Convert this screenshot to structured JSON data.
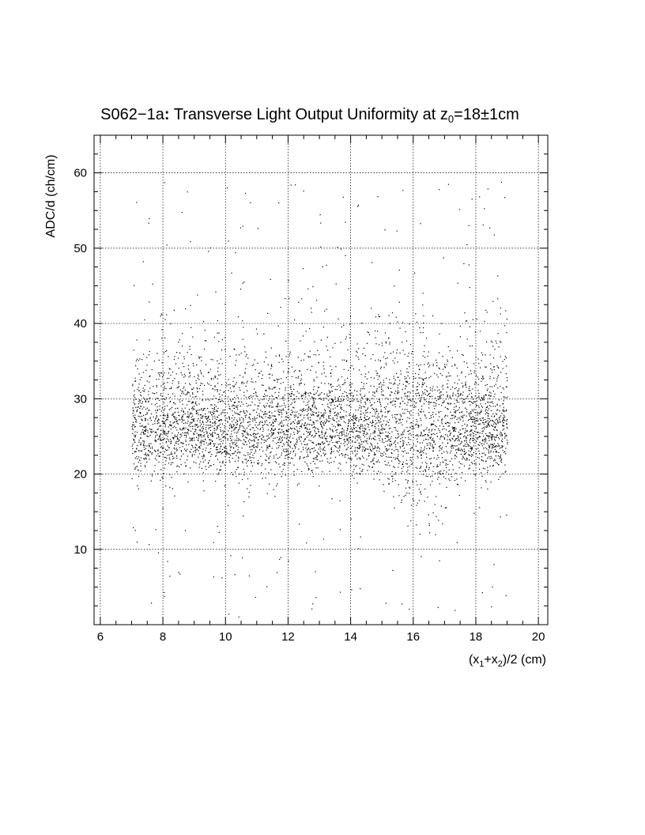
{
  "chart_data": {
    "type": "scatter",
    "title": {
      "prefix": "S062",
      "dash": "−",
      "suffix": "1a",
      "colon": ":",
      "main": " Transverse Light Output Uniformity at z",
      "sub": "0",
      "eq": "=18",
      "pm": "±",
      "tail": "1cm"
    },
    "ylabel": "ADC/d (ch/cm)",
    "xlabel": {
      "p1": "(x",
      "s1": "1",
      "p2": "+x",
      "s2": "2",
      "p3": ")/2 (cm)"
    },
    "xlim": [
      5.8,
      20.3
    ],
    "ylim": [
      0,
      65
    ],
    "x_ticks": [
      6,
      8,
      10,
      12,
      14,
      16,
      18,
      20
    ],
    "y_ticks": [
      10,
      20,
      30,
      40,
      50,
      60
    ],
    "grid": true,
    "marker_color": "#000000",
    "distribution": {
      "x_range": [
        7.0,
        19.0
      ],
      "core_y_mean": 25.5,
      "core_y_sd": 2.8,
      "halo_y_range": [
        1,
        59
      ],
      "n_points": 5200
    }
  }
}
